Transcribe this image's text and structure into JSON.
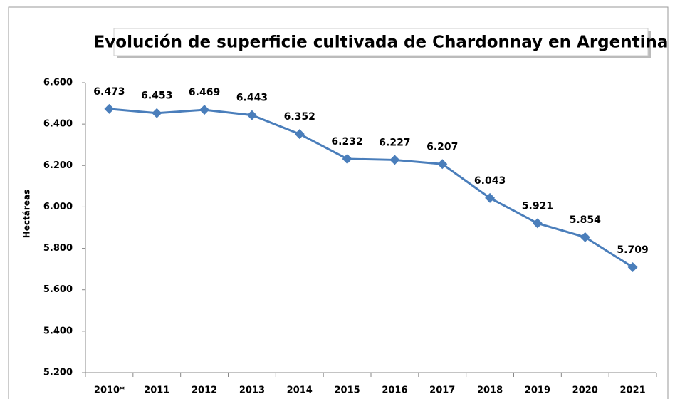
{
  "chart_data": {
    "type": "line",
    "title": "Evolución de superficie cultivada de Chardonnay en Argentina",
    "ylabel": "Hectáreas",
    "categories": [
      "2010*",
      "2011",
      "2012",
      "2013",
      "2014",
      "2015",
      "2016",
      "2017",
      "2018",
      "2019",
      "2020",
      "2021"
    ],
    "values": [
      6473,
      6453,
      6469,
      6443,
      6352,
      6232,
      6227,
      6207,
      6043,
      5921,
      5854,
      5709
    ],
    "value_labels": [
      "6.473",
      "6.453",
      "6.469",
      "6.443",
      "6.352",
      "6.232",
      "6.227",
      "6.207",
      "6.043",
      "5.921",
      "5.854",
      "5.709"
    ],
    "color": "#4a7ebb",
    "ylim": [
      5200,
      6600
    ],
    "yticks": [
      {
        "value": 5200,
        "label": "5.200"
      },
      {
        "value": 5400,
        "label": "5.400"
      },
      {
        "value": 5600,
        "label": "5.600"
      },
      {
        "value": 5800,
        "label": "5.800"
      },
      {
        "value": 6000,
        "label": "6.000"
      },
      {
        "value": 6200,
        "label": "6.200"
      },
      {
        "value": 6400,
        "label": "6.400"
      },
      {
        "value": 6600,
        "label": "6.600"
      }
    ],
    "grid": false
  }
}
